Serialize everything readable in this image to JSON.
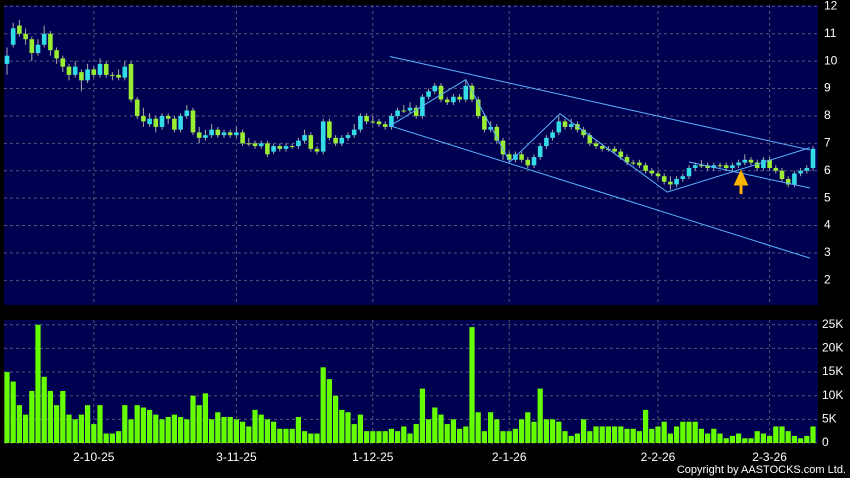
{
  "chart_data": {
    "type": "candlestick",
    "up_color": "#33dde8",
    "down_color": "#99ee33",
    "grid": true,
    "categories": [
      null,
      null,
      null,
      null,
      null,
      null,
      null,
      null,
      null,
      null,
      null,
      null,
      null,
      null,
      "2-10-25",
      null,
      null,
      null,
      null,
      null,
      null,
      null,
      null,
      null,
      null,
      null,
      null,
      null,
      null,
      null,
      null,
      null,
      null,
      null,
      null,
      null,
      null,
      "3-11-25",
      null,
      null,
      null,
      null,
      null,
      null,
      null,
      null,
      null,
      null,
      null,
      null,
      null,
      null,
      null,
      null,
      null,
      null,
      null,
      null,
      null,
      "1-12-25",
      null,
      null,
      null,
      null,
      null,
      null,
      null,
      null,
      null,
      null,
      null,
      null,
      null,
      null,
      null,
      null,
      null,
      null,
      null,
      null,
      null,
      "2-1-26",
      null,
      null,
      null,
      null,
      null,
      null,
      null,
      null,
      null,
      null,
      null,
      null,
      null,
      null,
      null,
      null,
      null,
      null,
      null,
      null,
      null,
      null,
      null,
      "2-2-26",
      null,
      null,
      null,
      null,
      null,
      null,
      null,
      null,
      null,
      null,
      null,
      null,
      null,
      null,
      null,
      null,
      null,
      "2-3-26",
      null,
      null,
      null,
      null,
      null,
      null,
      null
    ],
    "open": [
      9.9,
      10.6,
      11.3,
      11.0,
      10.8,
      10.3,
      10.6,
      11.0,
      10.4,
      10.1,
      9.8,
      9.5,
      9.6,
      9.3,
      9.7,
      9.5,
      9.9,
      9.5,
      9.5,
      9.4,
      9.9,
      8.6,
      8.0,
      7.7,
      7.9,
      7.6,
      8.0,
      7.9,
      7.5,
      8.0,
      8.2,
      7.4,
      7.2,
      7.3,
      7.5,
      7.3,
      7.4,
      7.3,
      7.4,
      7.0,
      7.0,
      6.9,
      7.0,
      6.7,
      6.9,
      6.8,
      6.9,
      6.9,
      7.1,
      7.3,
      6.8,
      6.7,
      7.8,
      7.2,
      7.0,
      7.2,
      7.3,
      7.5,
      8.0,
      7.8,
      7.8,
      7.7,
      7.6,
      8.0,
      8.2,
      8.2,
      8.3,
      8.0,
      8.7,
      8.9,
      9.1,
      8.6,
      8.5,
      8.7,
      8.6,
      9.1,
      8.6,
      8.0,
      7.5,
      7.6,
      7.1,
      6.6,
      6.4,
      6.6,
      6.4,
      6.2,
      6.5,
      6.9,
      7.2,
      7.4,
      7.8,
      7.6,
      7.7,
      7.5,
      7.3,
      7.0,
      6.9,
      6.8,
      6.8,
      6.7,
      6.5,
      6.3,
      6.3,
      6.2,
      6.0,
      5.9,
      5.8,
      5.6,
      5.5,
      5.7,
      5.8,
      6.1,
      6.2,
      6.2,
      6.1,
      6.2,
      6.2,
      6.1,
      6.2,
      6.3,
      6.4,
      6.3,
      6.1,
      6.4,
      6.1,
      6.0,
      5.7,
      5.5,
      5.9,
      6.0,
      6.1
    ],
    "high": [
      10.5,
      11.4,
      11.5,
      11.2,
      10.9,
      10.8,
      11.3,
      11.1,
      10.5,
      10.2,
      9.9,
      10.0,
      9.7,
      9.9,
      9.8,
      10.1,
      10.0,
      9.6,
      9.7,
      10.0,
      10.0,
      8.7,
      8.3,
      8.1,
      8.0,
      8.1,
      8.1,
      8.0,
      8.1,
      8.4,
      8.3,
      7.6,
      7.5,
      7.7,
      7.6,
      7.5,
      7.5,
      7.6,
      7.5,
      7.2,
      7.1,
      7.1,
      7.1,
      7.0,
      7.0,
      7.0,
      7.0,
      7.2,
      7.5,
      7.4,
      6.9,
      7.9,
      7.9,
      7.3,
      7.3,
      7.4,
      7.7,
      8.1,
      8.1,
      8.0,
      7.9,
      7.8,
      8.1,
      8.3,
      8.4,
      8.5,
      8.4,
      8.8,
      9.0,
      9.2,
      9.2,
      8.7,
      8.8,
      8.8,
      9.3,
      9.2,
      8.7,
      8.1,
      7.8,
      7.7,
      7.2,
      6.7,
      6.7,
      6.7,
      6.5,
      6.6,
      7.0,
      7.3,
      7.5,
      8.0,
      7.9,
      7.9,
      7.8,
      7.6,
      7.4,
      7.1,
      7.0,
      6.9,
      6.9,
      6.8,
      6.6,
      6.4,
      6.4,
      6.3,
      6.1,
      6.0,
      5.9,
      5.8,
      5.8,
      5.9,
      6.2,
      6.3,
      6.4,
      6.3,
      6.3,
      6.3,
      6.3,
      6.3,
      6.4,
      6.6,
      6.5,
      6.4,
      6.5,
      6.5,
      6.2,
      6.1,
      5.8,
      6.0,
      6.1,
      6.2,
      6.9
    ],
    "low": [
      9.5,
      10.5,
      10.9,
      10.6,
      10.0,
      10.2,
      10.5,
      10.2,
      9.9,
      9.6,
      9.3,
      9.4,
      8.9,
      9.2,
      9.4,
      9.4,
      9.4,
      9.3,
      9.3,
      9.3,
      8.5,
      7.9,
      7.6,
      7.6,
      7.4,
      7.5,
      7.7,
      7.4,
      7.4,
      7.9,
      7.3,
      7.0,
      7.1,
      7.2,
      7.2,
      7.2,
      7.2,
      7.2,
      6.9,
      6.9,
      6.8,
      6.8,
      6.5,
      6.6,
      6.7,
      6.7,
      6.8,
      6.8,
      7.0,
      6.7,
      6.6,
      6.6,
      7.1,
      6.9,
      6.9,
      7.1,
      7.2,
      7.4,
      7.7,
      7.7,
      7.6,
      7.5,
      7.5,
      7.9,
      8.1,
      8.1,
      7.9,
      7.9,
      8.6,
      8.8,
      8.5,
      8.4,
      8.4,
      8.5,
      8.5,
      8.5,
      7.9,
      7.4,
      7.4,
      7.0,
      6.4,
      6.3,
      6.3,
      6.3,
      6.1,
      6.1,
      6.4,
      6.8,
      7.1,
      7.3,
      7.5,
      7.5,
      7.4,
      7.2,
      6.9,
      6.8,
      6.7,
      6.7,
      6.6,
      6.4,
      6.2,
      6.2,
      6.1,
      5.9,
      5.8,
      5.7,
      5.5,
      5.3,
      5.4,
      5.6,
      5.7,
      6.0,
      6.1,
      6.0,
      6.0,
      6.1,
      6.0,
      6.0,
      6.1,
      6.2,
      6.2,
      6.0,
      6.0,
      6.0,
      5.9,
      5.6,
      5.4,
      5.4,
      5.8,
      5.9,
      6.0
    ],
    "close": [
      10.2,
      11.2,
      11.0,
      10.8,
      10.3,
      10.6,
      11.0,
      10.4,
      10.1,
      9.8,
      9.5,
      9.8,
      9.3,
      9.7,
      9.5,
      9.9,
      9.5,
      9.5,
      9.4,
      9.8,
      8.6,
      8.0,
      7.8,
      7.9,
      7.6,
      8.0,
      7.9,
      7.5,
      8.0,
      8.2,
      7.4,
      7.2,
      7.3,
      7.5,
      7.3,
      7.4,
      7.3,
      7.4,
      7.0,
      7.0,
      6.9,
      7.0,
      6.6,
      6.9,
      6.8,
      6.9,
      6.9,
      7.1,
      7.3,
      6.8,
      6.7,
      7.8,
      7.2,
      7.0,
      7.2,
      7.3,
      7.5,
      8.0,
      7.8,
      7.8,
      7.7,
      7.6,
      8.0,
      8.2,
      8.2,
      8.3,
      8.0,
      8.7,
      8.9,
      9.1,
      8.6,
      8.5,
      8.7,
      8.6,
      9.1,
      8.6,
      8.0,
      7.5,
      7.6,
      7.1,
      6.6,
      6.4,
      6.6,
      6.4,
      6.2,
      6.5,
      6.9,
      7.2,
      7.4,
      7.8,
      7.6,
      7.7,
      7.5,
      7.3,
      7.0,
      6.9,
      6.8,
      6.8,
      6.7,
      6.5,
      6.3,
      6.3,
      6.2,
      6.0,
      5.9,
      5.8,
      5.6,
      5.5,
      5.7,
      5.8,
      6.1,
      6.2,
      6.2,
      6.1,
      6.2,
      6.2,
      6.1,
      6.2,
      6.3,
      6.4,
      6.3,
      6.1,
      6.4,
      6.1,
      6.0,
      5.7,
      5.5,
      5.9,
      6.0,
      6.1,
      6.8
    ],
    "ylim": [
      1.1,
      12.05
    ],
    "yticks": [
      2,
      3,
      4,
      5,
      6,
      7,
      8,
      9,
      10,
      11,
      12
    ],
    "trendlines": [
      {
        "color": "#5ab4ff",
        "points": [
          [
            61.8,
            10.17
          ],
          [
            129.5,
            6.76
          ]
        ]
      },
      {
        "color": "#5ab4ff",
        "points": [
          [
            61.8,
            7.64
          ],
          [
            129.5,
            2.81
          ]
        ]
      },
      {
        "color": "#5ab4ff",
        "points": [
          [
            61.8,
            7.64
          ],
          [
            74,
            9.33
          ],
          [
            81.1,
            6.32
          ],
          [
            89.2,
            8.08
          ],
          [
            106.5,
            5.22
          ],
          [
            129.5,
            6.84
          ]
        ]
      },
      {
        "color": "#5ab4ff",
        "points": [
          [
            110,
            6.32
          ],
          [
            129.5,
            5.37
          ]
        ]
      }
    ],
    "volume": {
      "type": "bar",
      "color": "#66ff00",
      "values": [
        15000,
        13000,
        8000,
        6000,
        11000,
        25000,
        14000,
        11000,
        8000,
        11000,
        6000,
        5000,
        6000,
        8000,
        4000,
        8000,
        2000,
        2000,
        2500,
        8000,
        5000,
        8000,
        7500,
        7000,
        6000,
        5000,
        5500,
        6000,
        5500,
        5000,
        10000,
        8000,
        10500,
        5000,
        6500,
        5500,
        5500,
        5000,
        4500,
        3500,
        7000,
        6000,
        5000,
        4500,
        3000,
        3000,
        3000,
        5500,
        2500,
        2000,
        2000,
        16000,
        13500,
        10000,
        7000,
        6500,
        4000,
        6000,
        2500,
        2500,
        2500,
        2500,
        3000,
        2500,
        3500,
        2000,
        4000,
        11500,
        5000,
        7500,
        6000,
        4000,
        5000,
        3000,
        3500,
        24500,
        6500,
        2500,
        6500,
        5000,
        2500,
        2500,
        3000,
        5000,
        6500,
        4500,
        11500,
        5000,
        5000,
        4500,
        2500,
        1500,
        2000,
        5000,
        2500,
        3500,
        3500,
        3500,
        3500,
        3500,
        3000,
        3000,
        2500,
        7000,
        3000,
        3500,
        4500,
        2000,
        3500,
        4500,
        4500,
        4500,
        3000,
        2000,
        3000,
        2000,
        1000,
        1500,
        2000,
        1000,
        1000,
        2500,
        2000,
        1500,
        3500,
        3500,
        2500,
        1500,
        1000,
        1500,
        3500
      ],
      "ylim": [
        0,
        26000
      ],
      "yticks": [
        0,
        {
          "value": 5000,
          "label": "5K"
        },
        {
          "value": 10000,
          "label": "10K"
        },
        {
          "value": 15000,
          "label": "15K"
        },
        {
          "value": 20000,
          "label": "20K"
        },
        {
          "value": 25000,
          "label": "25K"
        }
      ]
    }
  },
  "copyright": "Copyright by AASTOCKS.com Ltd."
}
